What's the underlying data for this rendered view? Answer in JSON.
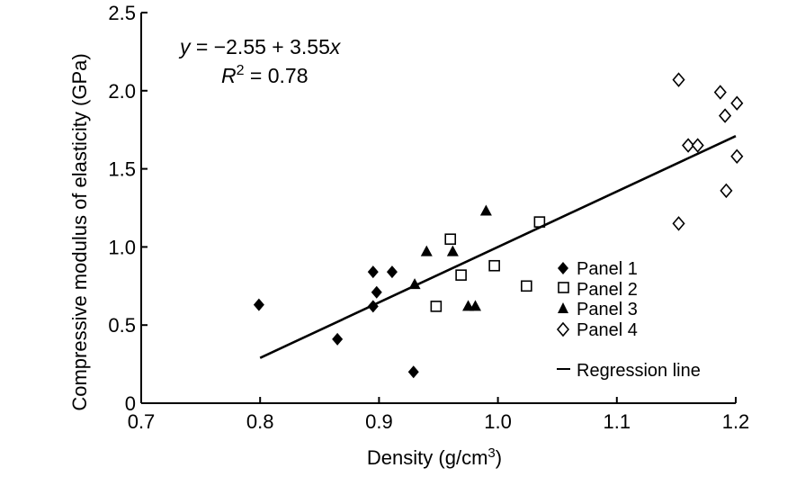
{
  "chart_data": {
    "type": "scatter",
    "xlabel": "Density (g/cm",
    "xlabel_sup": "3",
    "xlabel_end": ")",
    "ylabel": "Compressive modulus of elasticity (GPa)",
    "xlim": [
      0.7,
      1.2
    ],
    "ylim": [
      0,
      2.5
    ],
    "x_ticks": [
      0.7,
      0.8,
      0.9,
      1.0,
      1.1,
      1.2
    ],
    "x_tick_labels": [
      "0.7",
      "0.8",
      "0.9",
      "1.0",
      "1.1",
      "1.2"
    ],
    "y_ticks": [
      0,
      0.5,
      1.0,
      1.5,
      2.0,
      2.5
    ],
    "y_tick_labels": [
      "0",
      "0.5",
      "1.0",
      "1.5",
      "2.0",
      "2.5"
    ],
    "grid": false,
    "legend_position": "right",
    "annotation": {
      "equation_y": "y",
      "equation_rest": " = −2.55 + 3.55",
      "equation_x": "x",
      "r2_r": "R",
      "r2_sup": "2",
      "r2_rest": " = 0.78"
    },
    "series": [
      {
        "name": "Panel 1",
        "marker": "diamond-filled",
        "points": [
          [
            0.799,
            0.63
          ],
          [
            0.865,
            0.41
          ],
          [
            0.895,
            0.62
          ],
          [
            0.895,
            0.84
          ],
          [
            0.898,
            0.71
          ],
          [
            0.911,
            0.84
          ],
          [
            0.929,
            0.2
          ]
        ]
      },
      {
        "name": "Panel 2",
        "marker": "square-open",
        "points": [
          [
            0.948,
            0.62
          ],
          [
            0.96,
            1.05
          ],
          [
            0.969,
            0.82
          ],
          [
            0.997,
            0.88
          ],
          [
            1.024,
            0.75
          ],
          [
            1.035,
            1.16
          ]
        ]
      },
      {
        "name": "Panel 3",
        "marker": "triangle-filled",
        "points": [
          [
            0.93,
            0.76
          ],
          [
            0.94,
            0.97
          ],
          [
            0.962,
            0.97
          ],
          [
            0.975,
            0.62
          ],
          [
            0.981,
            0.62
          ],
          [
            0.99,
            1.23
          ]
        ]
      },
      {
        "name": "Panel 4",
        "marker": "diamond-open",
        "points": [
          [
            1.152,
            2.07
          ],
          [
            1.152,
            1.15
          ],
          [
            1.16,
            1.65
          ],
          [
            1.168,
            1.65
          ],
          [
            1.187,
            1.99
          ],
          [
            1.191,
            1.84
          ],
          [
            1.192,
            1.36
          ],
          [
            1.201,
            1.92
          ],
          [
            1.201,
            1.58
          ]
        ]
      }
    ],
    "regression": {
      "name": "Regression line",
      "intercept": -2.55,
      "slope": 3.55,
      "x_range": [
        0.8,
        1.2
      ]
    }
  }
}
